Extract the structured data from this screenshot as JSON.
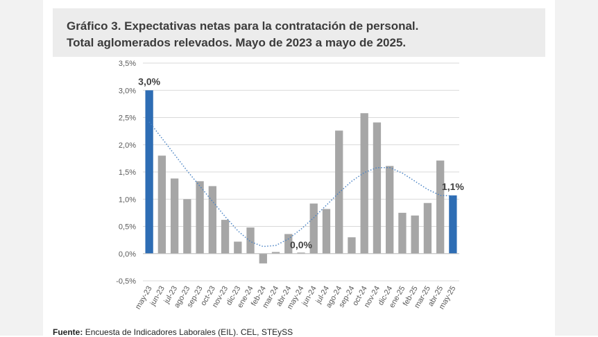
{
  "title": {
    "line1": "Gráfico 3. Expectativas netas para la contratación de personal.",
    "line2": "Total aglomerados relevados. Mayo de 2023 a mayo de 2025."
  },
  "source": {
    "label": "Fuente:",
    "text": "Encuesta de Indicadores Laborales (EIL). CEL, STEySS"
  },
  "colors": {
    "bar_gray": "#a6a6a6",
    "bar_blue": "#2e6db4",
    "trend": "#4a83c4",
    "grid": "#d9d9d9",
    "axis_text": "#595959"
  },
  "chart_data": {
    "type": "bar",
    "categories": [
      "may-23",
      "jun-23",
      "jul-23",
      "ago-23",
      "sep-23",
      "oct-23",
      "nov-23",
      "dic-23",
      "ene-24",
      "feb-24",
      "mar-24",
      "abr-24",
      "may-24",
      "jun-24",
      "jul-24",
      "ago-24",
      "sep-24",
      "oct-24",
      "nov-24",
      "dic-24",
      "ene-25",
      "feb-25",
      "mar-25",
      "abr-25",
      "may-25"
    ],
    "series": [
      {
        "values": [
          3.0,
          1.8,
          1.38,
          1.0,
          1.33,
          1.24,
          0.62,
          0.22,
          0.48,
          -0.18,
          0.03,
          0.36,
          0.0,
          0.92,
          0.82,
          2.26,
          0.3,
          2.58,
          2.41,
          1.61,
          0.75,
          0.7,
          0.93,
          1.71,
          1.07
        ],
        "highlight": [
          0,
          24
        ]
      }
    ],
    "trendline": {
      "style": "dotted",
      "values": [
        2.42,
        2.12,
        1.82,
        1.52,
        1.24,
        0.96,
        0.68,
        0.42,
        0.22,
        0.13,
        0.15,
        0.27,
        0.45,
        0.66,
        0.89,
        1.12,
        1.33,
        1.49,
        1.58,
        1.58,
        1.48,
        1.33,
        1.18,
        1.07,
        1.06
      ]
    },
    "data_labels": [
      {
        "index": 0,
        "text": "3,0%"
      },
      {
        "index": 12,
        "text": "0,0%"
      },
      {
        "index": 24,
        "text": "1,1%"
      }
    ],
    "yticks": [
      "-0,5%",
      "0,0%",
      "0,5%",
      "1,0%",
      "1,5%",
      "2,0%",
      "2,5%",
      "3,0%",
      "3,5%"
    ],
    "ylim": [
      -0.5,
      3.5
    ],
    "ytick_step": 0.5,
    "grid": true,
    "legend": "none",
    "xlabel": "",
    "ylabel": ""
  }
}
